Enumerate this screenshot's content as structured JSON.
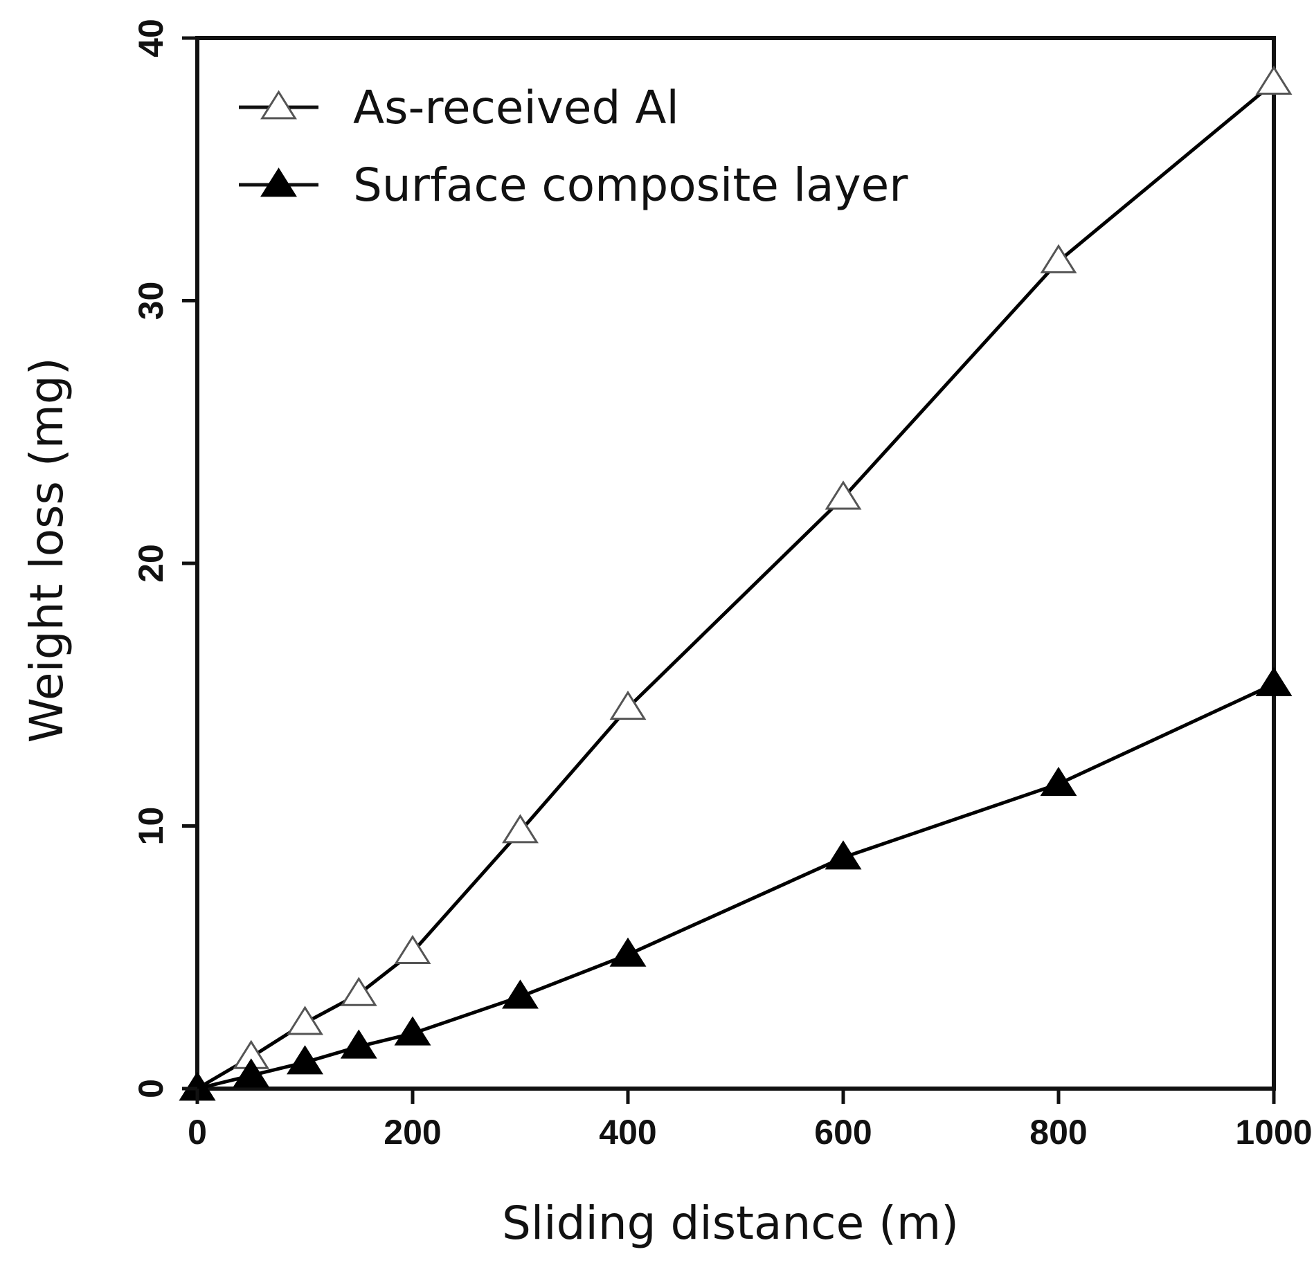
{
  "chart_data": {
    "type": "line",
    "title": "",
    "xlabel": "Sliding distance (m)",
    "ylabel": "Weight loss (mg)",
    "xlim": [
      0,
      1000
    ],
    "ylim": [
      0,
      40
    ],
    "xticks": [
      0,
      200,
      400,
      600,
      800,
      1000
    ],
    "yticks": [
      0,
      10,
      20,
      30,
      40
    ],
    "grid": false,
    "legend": {
      "position": "top-left"
    },
    "series": [
      {
        "name": "As-received Al",
        "marker": "open-triangle",
        "color": "#000000",
        "x": [
          0,
          50,
          100,
          150,
          200,
          300,
          400,
          600,
          800,
          1000
        ],
        "y": [
          0,
          1.2,
          2.5,
          3.6,
          5.2,
          9.8,
          14.5,
          22.5,
          31.5,
          38.3
        ]
      },
      {
        "name": "Surface composite layer",
        "marker": "filled-triangle",
        "color": "#000000",
        "x": [
          0,
          50,
          100,
          150,
          200,
          300,
          400,
          600,
          800,
          1000
        ],
        "y": [
          0,
          0.5,
          1.0,
          1.6,
          2.1,
          3.5,
          5.1,
          8.8,
          11.6,
          15.4
        ]
      }
    ]
  }
}
